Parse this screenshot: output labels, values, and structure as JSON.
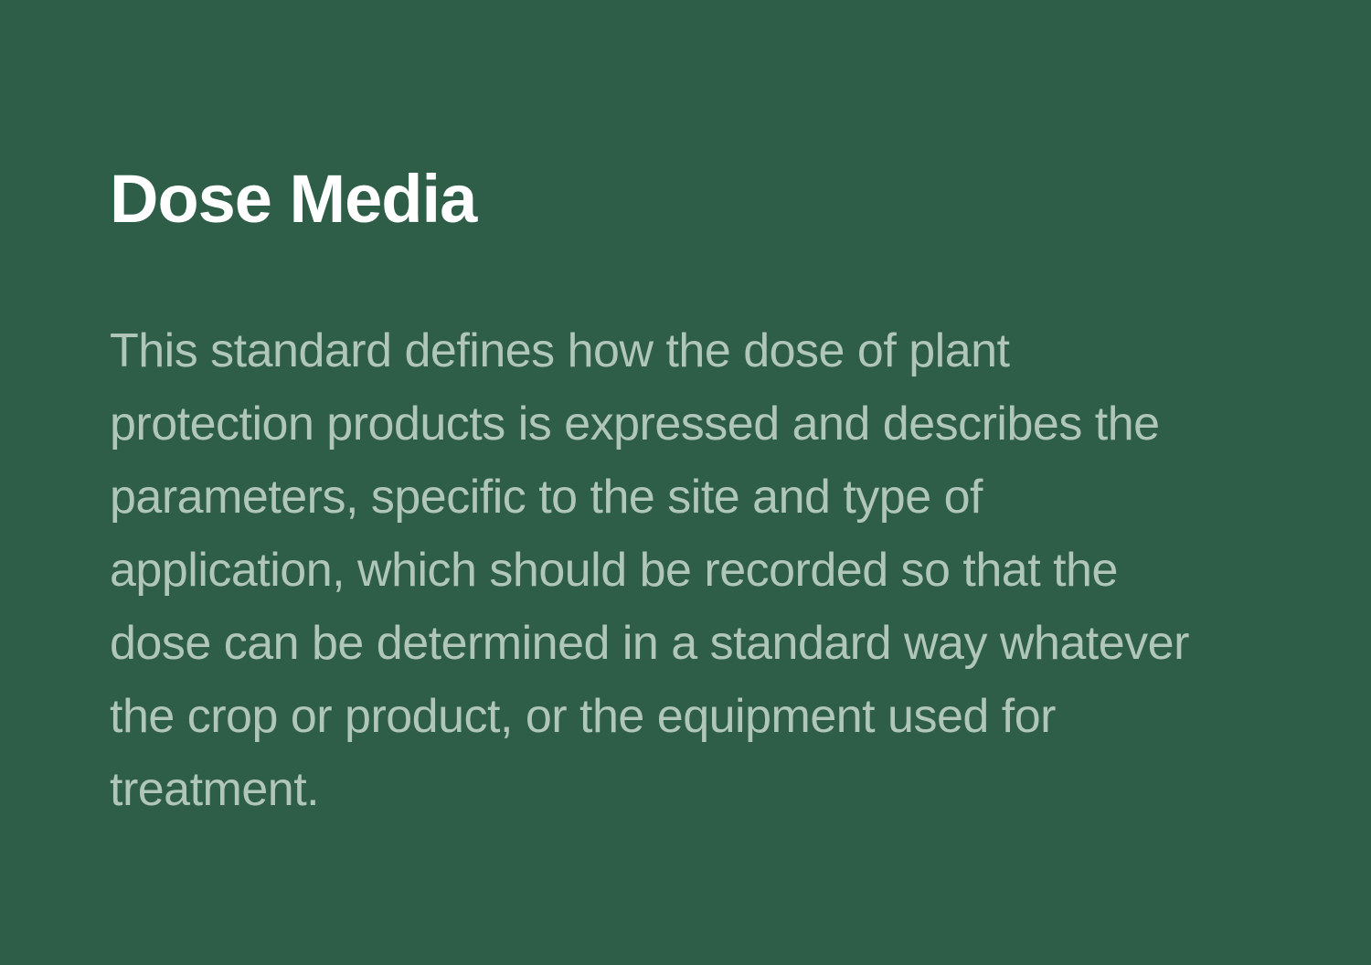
{
  "card": {
    "title": "Dose Media",
    "description_lines": [
      "This standard defines how the dose of plant",
      "protection products is expressed and describes the",
      "parameters, specific to the site and type of",
      "application, which should be recorded so that the",
      "dose can be determined in a standard way whatever",
      "the crop or product, or the equipment used for",
      "treatment."
    ]
  },
  "colors": {
    "background": "#2e5e48",
    "title": "#ffffff",
    "body_text": "#b1c6ba"
  }
}
